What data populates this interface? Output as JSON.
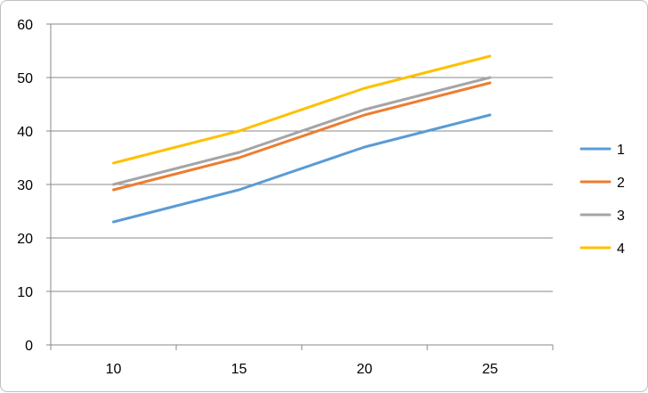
{
  "chart_data": {
    "type": "line",
    "title": "",
    "xlabel": "",
    "ylabel": "",
    "categories": [
      "10",
      "15",
      "20",
      "25"
    ],
    "y_ticks": [
      "0",
      "10",
      "20",
      "30",
      "40",
      "50",
      "60"
    ],
    "ylim": [
      0,
      60
    ],
    "grid": true,
    "legend_position": "right",
    "series": [
      {
        "name": "1",
        "color": "#5B9BD5",
        "values": [
          23,
          29,
          37,
          43
        ]
      },
      {
        "name": "2",
        "color": "#ED7D31",
        "values": [
          29,
          35,
          43,
          49
        ]
      },
      {
        "name": "3",
        "color": "#A5A5A5",
        "values": [
          30,
          36,
          44,
          50
        ]
      },
      {
        "name": "4",
        "color": "#FFC000",
        "values": [
          34,
          40,
          48,
          54
        ]
      }
    ]
  }
}
